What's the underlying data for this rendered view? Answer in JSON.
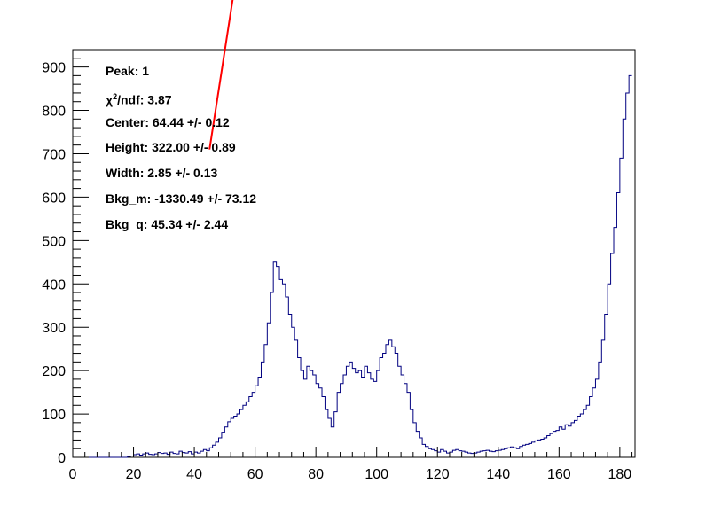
{
  "colors": {
    "histogram": "#000080",
    "fit": "#ff0000",
    "axis": "#000000",
    "background": "#ffffff"
  },
  "stats": {
    "peak": "Peak: 1",
    "chi_symbol": "χ",
    "chi_sup": "2",
    "chi_rest": "/ndf: 3.87",
    "center": "Center: 64.44 +/- 0.12",
    "height": "Height: 322.00 +/- 0.89",
    "width": "Width: 2.85 +/- 0.13",
    "bkg_m": "Bkg_m: -1330.49 +/- 73.12",
    "bkg_q": "Bkg_q: 45.34 +/- 2.44"
  },
  "chart_data": {
    "type": "histogram",
    "title": "",
    "xlabel": "",
    "ylabel": "",
    "xlim": [
      0,
      185
    ],
    "ylim": [
      0,
      940
    ],
    "x_ticks": [
      0,
      20,
      40,
      60,
      80,
      100,
      120,
      140,
      160,
      180
    ],
    "y_ticks": [
      0,
      100,
      200,
      300,
      400,
      500,
      600,
      700,
      800,
      900
    ],
    "bin_width": 1,
    "bin_start": 0,
    "bin_values": [
      0,
      0,
      0,
      0,
      0,
      0,
      0,
      0,
      0,
      0,
      0,
      0,
      0,
      0,
      0,
      0,
      0,
      0,
      2,
      3,
      6,
      8,
      5,
      8,
      10,
      7,
      6,
      8,
      11,
      9,
      10,
      7,
      12,
      9,
      8,
      14,
      11,
      10,
      13,
      8,
      12,
      10,
      14,
      18,
      15,
      22,
      28,
      35,
      45,
      58,
      70,
      82,
      90,
      95,
      100,
      110,
      120,
      128,
      140,
      150,
      165,
      185,
      220,
      260,
      310,
      380,
      450,
      440,
      410,
      400,
      370,
      330,
      300,
      270,
      230,
      200,
      180,
      210,
      200,
      190,
      170,
      160,
      140,
      110,
      90,
      70,
      105,
      150,
      170,
      190,
      210,
      220,
      205,
      195,
      200,
      185,
      210,
      195,
      180,
      175,
      200,
      230,
      240,
      260,
      270,
      255,
      240,
      210,
      190,
      170,
      150,
      110,
      80,
      60,
      45,
      30,
      25,
      20,
      18,
      15,
      12,
      18,
      14,
      10,
      12,
      16,
      18,
      15,
      14,
      12,
      10,
      9,
      10,
      12,
      14,
      15,
      16,
      14,
      13,
      15,
      16,
      18,
      20,
      22,
      24,
      22,
      20,
      25,
      28,
      30,
      32,
      35,
      38,
      40,
      42,
      45,
      50,
      55,
      60,
      62,
      70,
      65,
      75,
      72,
      80,
      85,
      95,
      100,
      110,
      120,
      140,
      160,
      180,
      220,
      270,
      330,
      400,
      470,
      530,
      610,
      690,
      780,
      840,
      880
    ]
  }
}
